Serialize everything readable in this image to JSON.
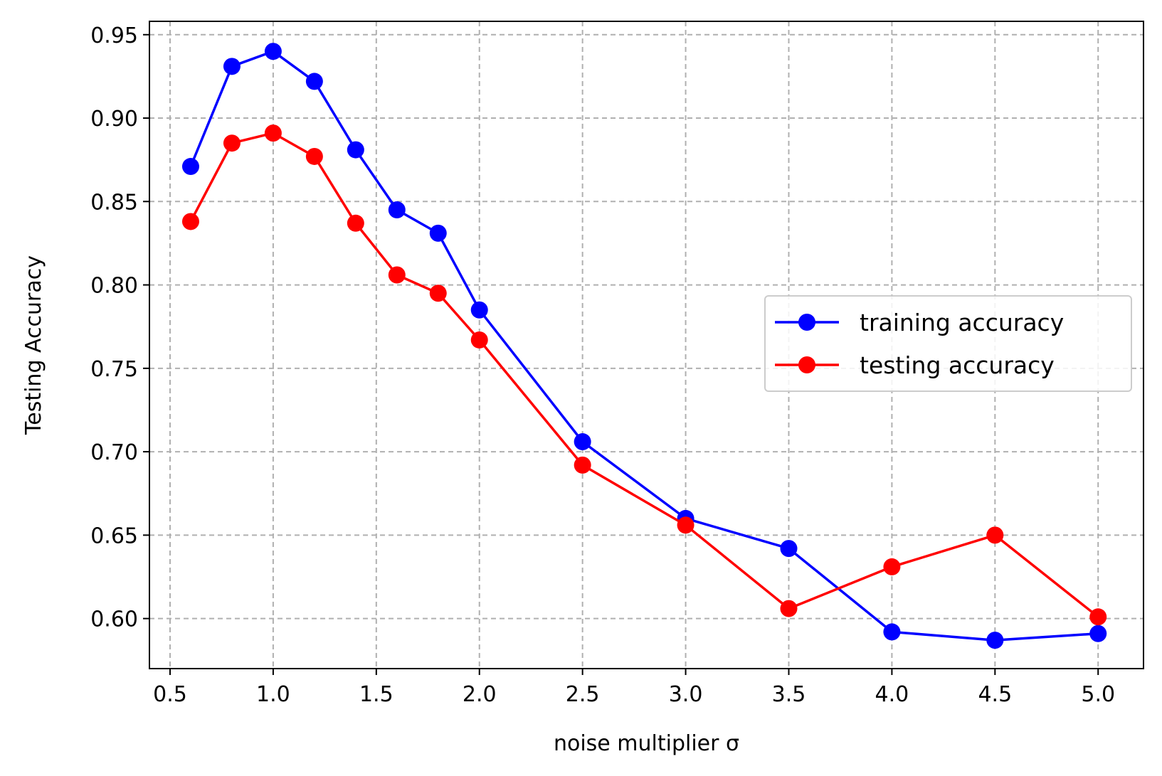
{
  "chart_data": {
    "type": "line",
    "title": "",
    "xlabel": "noise multiplier σ",
    "ylabel": "Testing Accuracy",
    "xlim": [
      0.4,
      5.22
    ],
    "ylim": [
      0.57,
      0.958
    ],
    "xticks": [
      "0.5",
      "1.0",
      "1.5",
      "2.0",
      "2.5",
      "3.0",
      "3.5",
      "4.0",
      "4.5",
      "5.0"
    ],
    "yticks": [
      "0.60",
      "0.65",
      "0.70",
      "0.75",
      "0.80",
      "0.85",
      "0.90",
      "0.95"
    ],
    "grid": true,
    "legend_position": "center-right",
    "x": [
      0.6,
      0.8,
      1.0,
      1.2,
      1.4,
      1.6,
      1.8,
      2.0,
      2.5,
      3.0,
      3.5,
      4.0,
      4.5,
      5.0
    ],
    "series": [
      {
        "name": "training accuracy",
        "color": "#0000ff",
        "values": [
          0.871,
          0.931,
          0.94,
          0.922,
          0.881,
          0.845,
          0.831,
          0.785,
          0.706,
          0.66,
          0.642,
          0.592,
          0.587,
          0.591
        ]
      },
      {
        "name": "testing accuracy",
        "color": "#ff0000",
        "values": [
          0.838,
          0.885,
          0.891,
          0.877,
          0.837,
          0.806,
          0.795,
          0.767,
          0.692,
          0.656,
          0.606,
          0.631,
          0.65,
          0.601
        ]
      }
    ]
  }
}
